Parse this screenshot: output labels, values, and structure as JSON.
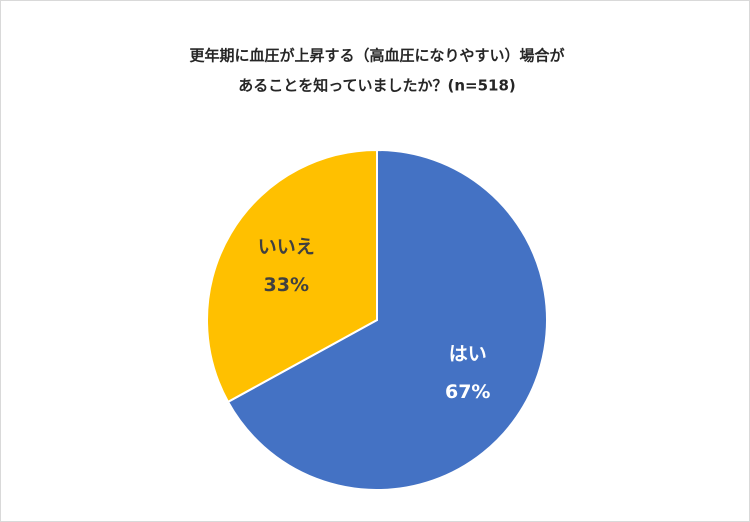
{
  "chart_data": {
    "type": "pie",
    "title": [
      "更年期に血圧が上昇する（高血圧になりやすい）場合が",
      "あることを知っていましたか？(n=518)"
    ],
    "categories": [
      "はい",
      "いいえ"
    ],
    "values": [
      67,
      33
    ],
    "value_labels": [
      "67%",
      "33%"
    ],
    "colors": [
      "#4472c4",
      "#ffc000"
    ]
  }
}
